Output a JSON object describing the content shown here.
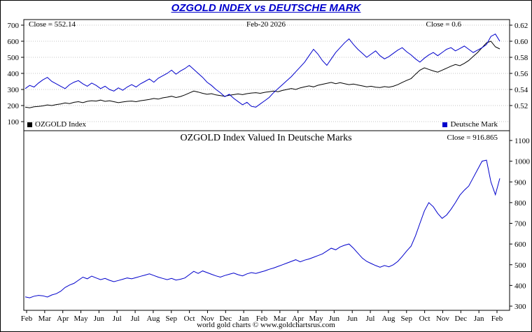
{
  "title": "OZGOLD INDEX vs DEUTSCHE MARK",
  "footer": "world gold charts © www.goldchartsrus.com",
  "colors": {
    "title_blue": "#0000cc",
    "series_black": "#000000",
    "series_blue": "#0000cc",
    "grid": "#b0b0b0"
  },
  "x_axis": {
    "labels": [
      "Feb",
      "Mar",
      "Apr",
      "May",
      "Jun",
      "Jul",
      "Jul",
      "Aug",
      "Sep",
      "Oct",
      "Nov",
      "Dec",
      "Jan",
      "Feb",
      "Mar",
      "Apr",
      "May",
      "Jun",
      "Jun",
      "Jul",
      "Aug",
      "Sep",
      "Oct",
      "Nov",
      "Dec",
      "Jan",
      "Feb"
    ]
  },
  "chart_data": [
    {
      "type": "line",
      "panel": "top",
      "close_left": "Close = 552.14",
      "date_label": "Feb-20  2026",
      "close_right": "Close = 0.6",
      "left_axis": {
        "ticks": [
          700,
          600,
          500,
          400,
          300,
          200,
          100
        ],
        "tick_labels": [
          "700",
          "600",
          "500",
          "400",
          "300",
          "200",
          "100"
        ],
        "range": [
          100,
          700
        ]
      },
      "right_axis": {
        "ticks": [
          0.62,
          0.6,
          0.58,
          0.56,
          0.54,
          0.52
        ],
        "tick_labels": [
          "0.62",
          "0.60",
          "0.58",
          "0.56",
          "0.54",
          "0.52"
        ],
        "range": [
          0.52,
          0.62
        ]
      },
      "grid": true,
      "legend": [
        {
          "label": "OZGOLD Index",
          "color": "#000000"
        },
        {
          "label": "Deutsche Mark",
          "color": "#0000cc"
        }
      ],
      "series": [
        {
          "name": "OZGOLD Index",
          "axis": "left",
          "color": "#000000",
          "values": [
            190,
            186,
            192,
            195,
            198,
            204,
            200,
            206,
            210,
            216,
            212,
            220,
            224,
            218,
            226,
            230,
            228,
            234,
            226,
            230,
            224,
            218,
            222,
            226,
            228,
            224,
            230,
            234,
            238,
            244,
            240,
            248,
            252,
            258,
            250,
            256,
            266,
            278,
            290,
            284,
            276,
            270,
            274,
            266,
            262,
            258,
            264,
            268,
            272,
            268,
            274,
            278,
            280,
            276,
            282,
            286,
            290,
            286,
            294,
            300,
            306,
            300,
            310,
            316,
            322,
            316,
            326,
            332,
            338,
            344,
            336,
            342,
            336,
            330,
            334,
            328,
            322,
            316,
            320,
            314,
            312,
            318,
            314,
            320,
            330,
            344,
            356,
            368,
            395,
            420,
            435,
            425,
            415,
            408,
            420,
            432,
            445,
            455,
            448,
            462,
            480,
            505,
            530,
            560,
            590,
            600,
            565,
            552.14
          ]
        },
        {
          "name": "Deutsche Mark",
          "axis": "right",
          "color": "#0000cc",
          "values": [
            0.541,
            0.545,
            0.543,
            0.548,
            0.552,
            0.555,
            0.55,
            0.547,
            0.544,
            0.541,
            0.546,
            0.549,
            0.551,
            0.547,
            0.544,
            0.548,
            0.545,
            0.541,
            0.544,
            0.54,
            0.538,
            0.542,
            0.539,
            0.543,
            0.546,
            0.543,
            0.547,
            0.55,
            0.553,
            0.549,
            0.554,
            0.557,
            0.56,
            0.564,
            0.559,
            0.563,
            0.566,
            0.57,
            0.565,
            0.56,
            0.555,
            0.549,
            0.545,
            0.54,
            0.536,
            0.531,
            0.534,
            0.529,
            0.525,
            0.521,
            0.524,
            0.519,
            0.518,
            0.522,
            0.526,
            0.53,
            0.536,
            0.541,
            0.546,
            0.551,
            0.556,
            0.562,
            0.568,
            0.574,
            0.582,
            0.59,
            0.584,
            0.576,
            0.57,
            0.578,
            0.586,
            0.592,
            0.598,
            0.603,
            0.596,
            0.59,
            0.585,
            0.58,
            0.584,
            0.588,
            0.582,
            0.578,
            0.581,
            0.585,
            0.589,
            0.592,
            0.587,
            0.583,
            0.578,
            0.574,
            0.579,
            0.583,
            0.586,
            0.582,
            0.586,
            0.59,
            0.592,
            0.588,
            0.591,
            0.594,
            0.59,
            0.586,
            0.589,
            0.592,
            0.596,
            0.606,
            0.609,
            0.6
          ]
        }
      ]
    },
    {
      "type": "line",
      "panel": "bottom",
      "title": "OZGOLD Index Valued In Deutsche Marks",
      "close_right": "Close = 916.865",
      "right_axis": {
        "ticks": [
          1100,
          1000,
          900,
          800,
          700,
          600,
          500,
          400,
          300
        ],
        "tick_labels": [
          "1100",
          "1000",
          "900",
          "800",
          "700",
          "600",
          "500",
          "400",
          "300"
        ],
        "range": [
          300,
          1100
        ]
      },
      "grid": false,
      "series": [
        {
          "name": "OZGOLD Index in Deutsche Marks",
          "axis": "right",
          "color": "#0000cc",
          "values": [
            345,
            340,
            348,
            352,
            350,
            344,
            354,
            360,
            372,
            390,
            402,
            410,
            425,
            440,
            432,
            445,
            436,
            428,
            434,
            425,
            418,
            424,
            430,
            436,
            432,
            438,
            444,
            450,
            456,
            448,
            440,
            434,
            428,
            434,
            426,
            430,
            436,
            452,
            468,
            458,
            470,
            462,
            454,
            446,
            440,
            448,
            454,
            460,
            452,
            446,
            456,
            462,
            458,
            464,
            470,
            478,
            484,
            492,
            500,
            508,
            516,
            524,
            514,
            522,
            528,
            536,
            544,
            552,
            566,
            580,
            572,
            586,
            594,
            600,
            580,
            556,
            532,
            516,
            506,
            496,
            488,
            496,
            490,
            500,
            516,
            540,
            566,
            590,
            640,
            700,
            760,
            800,
            780,
            748,
            724,
            740,
            768,
            800,
            836,
            860,
            880,
            920,
            960,
            1000,
            1005,
            900,
            838,
            916.865
          ]
        }
      ]
    }
  ]
}
